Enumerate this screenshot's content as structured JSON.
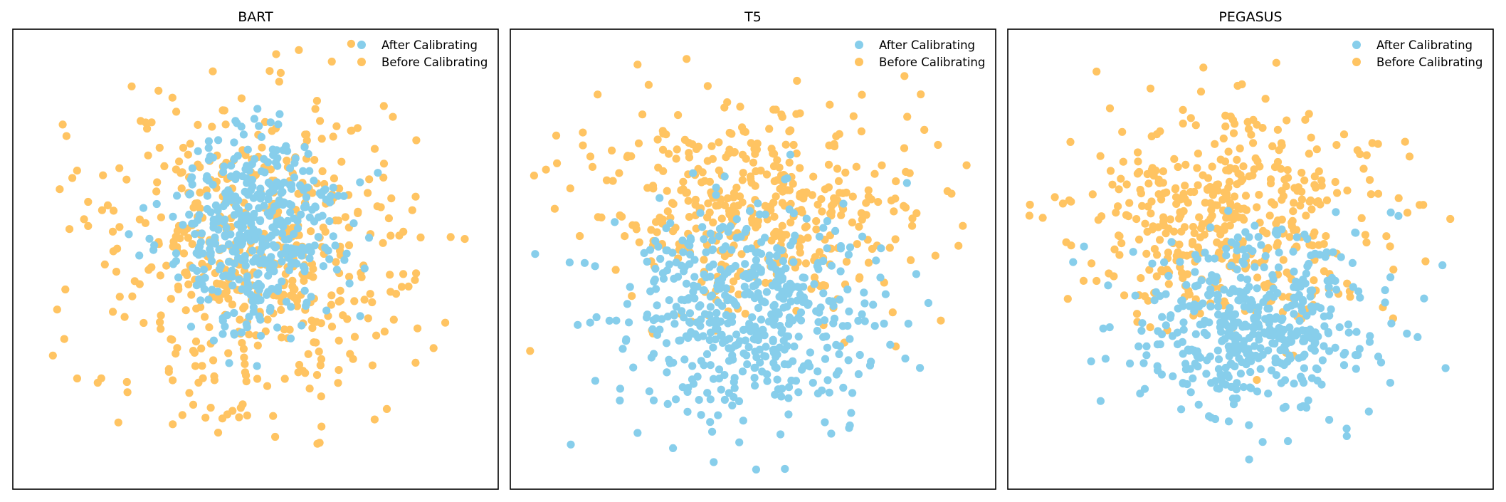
{
  "colors": {
    "after": "#87ceeb",
    "before": "#ffc462"
  },
  "legend": [
    "After Calibrating",
    "Before Calibrating"
  ],
  "chart_data": [
    {
      "type": "scatter",
      "title": "BART",
      "series": [
        {
          "name": "After Calibrating",
          "color": "#87ceeb",
          "center": [
            0.5,
            0.44
          ],
          "spread": [
            0.16,
            0.19
          ],
          "points": 420
        },
        {
          "name": "Before Calibrating",
          "color": "#ffc462",
          "center": [
            0.5,
            0.5
          ],
          "spread": [
            0.3,
            0.32
          ],
          "points": 520
        }
      ],
      "grid": false,
      "ticks": "none",
      "legend_position": "top-right"
    },
    {
      "type": "scatter",
      "title": "T5",
      "series": [
        {
          "name": "After Calibrating",
          "color": "#87ceeb",
          "center": [
            0.48,
            0.62
          ],
          "spread": [
            0.24,
            0.2
          ],
          "points": 520
        },
        {
          "name": "Before Calibrating",
          "color": "#ffc462",
          "center": [
            0.5,
            0.38
          ],
          "spread": [
            0.3,
            0.22
          ],
          "points": 430
        }
      ],
      "grid": false,
      "ticks": "none",
      "legend_position": "top-right"
    },
    {
      "type": "scatter",
      "title": "PEGASUS",
      "series": [
        {
          "name": "After Calibrating",
          "color": "#87ceeb",
          "center": [
            0.52,
            0.64
          ],
          "spread": [
            0.22,
            0.18
          ],
          "points": 480
        },
        {
          "name": "Before Calibrating",
          "color": "#ffc462",
          "center": [
            0.45,
            0.4
          ],
          "spread": [
            0.3,
            0.22
          ],
          "points": 450
        }
      ],
      "grid": false,
      "ticks": "none",
      "legend_position": "top-right"
    }
  ]
}
